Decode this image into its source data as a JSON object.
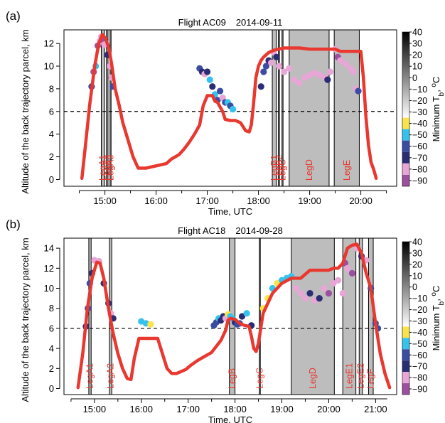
{
  "chart_data": [
    {
      "panel_label": "(a)",
      "title_parts": [
        "Flight AC09",
        "2014-09-11"
      ],
      "type": "line",
      "xlabel": "Time, UTC",
      "ylabel": "Altitude of the back trajectory parcel, km",
      "xlim": [
        14.2,
        20.7
      ],
      "ylim": [
        -0.6,
        13.2
      ],
      "xticks": [
        15,
        16,
        17,
        18,
        19,
        20
      ],
      "xtick_labels": [
        "15:00",
        "16:00",
        "17:00",
        "18:00",
        "19:00",
        "20:00"
      ],
      "yticks": [
        0,
        2,
        4,
        6,
        8,
        10,
        12
      ],
      "reference_line_km": 6,
      "legs": [
        {
          "name": "LegA1",
          "start": 14.93,
          "end": 14.99
        },
        {
          "name": "LegA2",
          "start": 15.03,
          "end": 15.06
        },
        {
          "name": "LegA3",
          "start": 15.1,
          "end": 15.12
        },
        {
          "name": "LegB1",
          "start": 18.27,
          "end": 18.35
        },
        {
          "name": "LegB2",
          "start": 18.39,
          "end": 18.41
        },
        {
          "name": "LegC",
          "start": 18.46,
          "end": 18.48
        },
        {
          "name": "LegD",
          "start": 18.6,
          "end": 19.38
        },
        {
          "name": "LegE",
          "start": 19.48,
          "end": 19.97
        }
      ],
      "trajectory": {
        "color": "#e8382f",
        "x": [
          14.55,
          14.62,
          14.7,
          14.8,
          14.88,
          14.95,
          15.02,
          15.08,
          15.13,
          15.2,
          15.28,
          15.35,
          15.45,
          15.55,
          15.65,
          15.8,
          16.0,
          16.2,
          16.3,
          16.45,
          16.55,
          16.65,
          16.75,
          16.85,
          16.92,
          17.0,
          17.1,
          17.15,
          17.2,
          17.3,
          17.35,
          17.45,
          17.55,
          17.65,
          17.75,
          17.82,
          17.86,
          17.9,
          17.95,
          18.0,
          18.05,
          18.1,
          18.2,
          18.3,
          18.4,
          18.5,
          18.6,
          18.8,
          19.0,
          19.3,
          19.5,
          19.6,
          19.8,
          20.0,
          20.05,
          20.1,
          20.15,
          20.2,
          20.25,
          20.3
        ],
        "y": [
          0.1,
          3.0,
          6.5,
          10.0,
          12.0,
          12.8,
          12.4,
          11.5,
          10.2,
          8.0,
          6.5,
          5.0,
          3.5,
          2.0,
          1.0,
          1.0,
          1.2,
          1.4,
          1.8,
          2.2,
          2.7,
          3.3,
          4.0,
          4.8,
          6.5,
          7.4,
          7.4,
          6.9,
          6.8,
          6.0,
          5.3,
          5.2,
          5.2,
          5.0,
          4.3,
          4.2,
          4.8,
          6.5,
          9.0,
          10.0,
          10.5,
          10.8,
          11.2,
          11.4,
          11.5,
          11.6,
          11.6,
          11.6,
          11.5,
          11.5,
          11.5,
          11.3,
          11.3,
          11.3,
          9.0,
          5.5,
          3.0,
          1.5,
          0.9,
          0.1
        ]
      },
      "observations": {
        "x": [
          14.74,
          14.78,
          14.82,
          14.86,
          14.9,
          14.93,
          14.96,
          14.99,
          15.05,
          15.1,
          15.13,
          15.15,
          16.85,
          16.9,
          16.95,
          17.0,
          17.05,
          17.1,
          17.15,
          17.2,
          17.25,
          17.3,
          17.35,
          17.4,
          17.45,
          17.5,
          18.05,
          18.1,
          18.15,
          18.2,
          18.25,
          18.3,
          18.35,
          18.4,
          18.5,
          18.6,
          18.7,
          18.8,
          18.9,
          19.0,
          19.1,
          19.2,
          19.3,
          19.35,
          19.4,
          19.5,
          19.55,
          19.6,
          19.7,
          19.8,
          19.85,
          19.9,
          19.95
        ],
        "y": [
          8.2,
          9.5,
          10.0,
          11.8,
          12.2,
          12.6,
          12.3,
          11.9,
          11.0,
          10.0,
          9.0,
          8.2,
          9.8,
          9.5,
          9.3,
          9.5,
          8.8,
          8.2,
          7.5,
          7.0,
          7.8,
          7.2,
          6.8,
          6.8,
          6.5,
          6.2,
          8.2,
          9.5,
          10.0,
          10.5,
          10.3,
          11.2,
          10.8,
          10.0,
          9.5,
          9.8,
          8.8,
          8.5,
          9.0,
          9.2,
          9.4,
          9.2,
          9.0,
          8.8,
          9.5,
          11.5,
          10.8,
          10.5,
          10.2,
          9.8,
          9.5,
          8.0,
          7.8
        ],
        "tb": [
          -55,
          -90,
          -45,
          -85,
          -80,
          -80,
          -85,
          -80,
          -65,
          -75,
          -80,
          -55,
          -60,
          -70,
          -75,
          -70,
          -50,
          -70,
          -50,
          -60,
          -55,
          -75,
          -55,
          -50,
          -60,
          -50,
          -65,
          -60,
          -55,
          -70,
          -75,
          -80,
          -65,
          -80,
          -80,
          -80,
          -80,
          -80,
          -80,
          -80,
          -80,
          -80,
          -80,
          -70,
          -80,
          -80,
          -85,
          -80,
          -80,
          -80,
          -80,
          -80,
          -55
        ]
      }
    },
    {
      "panel_label": "(b)",
      "title_parts": [
        "Flight AC18",
        "2014-09-28"
      ],
      "type": "line",
      "xlabel": "Time, UTC",
      "ylabel": "Altitude of the back trajectory parcel, km",
      "xlim": [
        14.35,
        21.45
      ],
      "ylim": [
        -0.6,
        15.0
      ],
      "xticks": [
        15,
        16,
        17,
        18,
        19,
        20,
        21
      ],
      "xtick_labels": [
        "15:00",
        "16:00",
        "17:00",
        "18:00",
        "19:00",
        "20:00",
        "21:00"
      ],
      "yticks": [
        0,
        2,
        4,
        6,
        8,
        10,
        12,
        14
      ],
      "reference_line_km": 6,
      "legs": [
        {
          "name": "LegA1",
          "start": 14.88,
          "end": 14.93
        },
        {
          "name": "LegA2",
          "start": 15.32,
          "end": 15.37
        },
        {
          "name": "LegB",
          "start": 17.88,
          "end": 18.0
        },
        {
          "name": "LegC",
          "start": 18.52,
          "end": 18.54
        },
        {
          "name": "LegD",
          "start": 19.2,
          "end": 20.12
        },
        {
          "name": "LegE1",
          "start": 20.3,
          "end": 20.58
        },
        {
          "name": "LegE2",
          "start": 20.65,
          "end": 20.72
        },
        {
          "name": "LegF",
          "start": 20.85,
          "end": 20.95
        }
      ],
      "trajectory": {
        "color": "#e8382f",
        "x": [
          14.65,
          14.75,
          14.85,
          14.95,
          15.05,
          15.12,
          15.2,
          15.3,
          15.4,
          15.5,
          15.6,
          15.7,
          15.78,
          15.85,
          15.95,
          16.0,
          16.1,
          16.2,
          16.35,
          16.45,
          16.55,
          16.65,
          16.75,
          16.85,
          16.95,
          17.05,
          17.2,
          17.35,
          17.5,
          17.6,
          17.7,
          17.8,
          17.85,
          17.9,
          18.0,
          18.1,
          18.2,
          18.3,
          18.35,
          18.4,
          18.45,
          18.5,
          18.55,
          18.6,
          18.7,
          18.8,
          19.0,
          19.2,
          19.4,
          19.6,
          19.8,
          20.0,
          20.1,
          20.2,
          20.3,
          20.4,
          20.5,
          20.6,
          20.7,
          20.8,
          20.9,
          21.0,
          21.1,
          21.2,
          21.3
        ],
        "y": [
          0.1,
          3.5,
          8.0,
          11.0,
          12.6,
          12.5,
          11.0,
          8.0,
          5.5,
          3.5,
          2.0,
          1.0,
          0.9,
          3.0,
          5.0,
          5.0,
          5.0,
          5.0,
          5.0,
          3.5,
          2.0,
          1.5,
          1.5,
          1.7,
          1.9,
          2.3,
          2.8,
          3.2,
          3.6,
          4.2,
          4.8,
          5.8,
          6.8,
          7.0,
          6.9,
          6.5,
          6.3,
          6.2,
          5.2,
          4.0,
          3.7,
          4.5,
          6.0,
          7.5,
          8.5,
          9.5,
          10.5,
          11.0,
          11.0,
          11.8,
          11.8,
          11.8,
          12.0,
          12.0,
          12.5,
          14.0,
          14.3,
          14.4,
          13.5,
          11.5,
          10.0,
          6.5,
          3.5,
          1.5,
          0.1
        ]
      },
      "observations": {
        "x": [
          14.82,
          14.86,
          14.9,
          14.95,
          15.0,
          15.1,
          15.2,
          15.3,
          15.35,
          15.4,
          16.0,
          16.1,
          16.2,
          17.55,
          17.6,
          17.65,
          17.7,
          17.75,
          17.8,
          17.85,
          17.9,
          17.95,
          18.0,
          18.05,
          18.1,
          18.15,
          18.25,
          18.35,
          18.6,
          18.7,
          18.8,
          18.9,
          19.0,
          19.1,
          19.2,
          19.3,
          19.4,
          19.5,
          19.6,
          19.7,
          19.8,
          19.9,
          20.0,
          20.1,
          20.2,
          20.3,
          20.35,
          20.4,
          20.5,
          20.6,
          20.7,
          20.8,
          20.9,
          21.0,
          21.05
        ],
        "y": [
          6.2,
          8.0,
          10.5,
          11.5,
          12.8,
          12.7,
          10.5,
          8.5,
          7.5,
          7.0,
          6.7,
          6.5,
          6.4,
          6.3,
          6.6,
          7.0,
          6.8,
          7.2,
          7.0,
          7.4,
          7.2,
          7.0,
          6.6,
          6.4,
          6.5,
          7.2,
          7.5,
          6.3,
          8.0,
          9.0,
          10.0,
          10.5,
          10.8,
          11.0,
          11.2,
          10.0,
          9.5,
          9.0,
          9.5,
          8.8,
          9.0,
          10.0,
          9.5,
          10.5,
          10.8,
          9.5,
          12.5,
          12.0,
          11.5,
          14.0,
          13.2,
          12.8,
          10.0,
          6.5,
          6.0
        ],
        "tb": [
          -65,
          -60,
          -55,
          -65,
          -75,
          -80,
          -65,
          -70,
          -80,
          -70,
          -50,
          -45,
          -40,
          -60,
          -55,
          -50,
          -70,
          -65,
          -75,
          -40,
          -50,
          -45,
          -70,
          -60,
          -55,
          -65,
          -50,
          -70,
          -40,
          -40,
          -45,
          -40,
          -50,
          -45,
          -45,
          -75,
          -80,
          -80,
          -70,
          -80,
          -70,
          -75,
          -85,
          -75,
          -80,
          -80,
          -85,
          -80,
          -85,
          -80,
          -70,
          -80,
          -60,
          -60,
          -60
        ]
      }
    }
  ],
  "colorbar": {
    "label_parts": [
      "Minimum T",
      "b",
      ", ",
      "o",
      "C"
    ],
    "ticks": [
      40,
      30,
      20,
      10,
      0,
      -10,
      -20,
      -30,
      -40,
      -50,
      -60,
      -70,
      -80,
      -90
    ],
    "tick_labels": [
      "40",
      "30",
      "20",
      "10",
      "0",
      "−10",
      "−20",
      "−30",
      "−40",
      "−50",
      "−60",
      "−70",
      "−80",
      "−90"
    ],
    "warm_gradient": [
      "#000000",
      "#ffffff"
    ],
    "discrete_bins": [
      {
        "max": -35,
        "color": "#f07a1e"
      },
      {
        "max": -45,
        "color": "#fbe34a"
      },
      {
        "max": -55,
        "color": "#35c2ec"
      },
      {
        "max": -65,
        "color": "#3b4da3"
      },
      {
        "max": -75,
        "color": "#2a2d73"
      },
      {
        "max": -85,
        "color": "#e8a6d6"
      },
      {
        "max": -95,
        "color": "#9b4f9e"
      }
    ]
  },
  "colors": {
    "leg_fill": "#bdbdbd",
    "leg_label": "#e8382f",
    "reference_line": "#000000"
  }
}
